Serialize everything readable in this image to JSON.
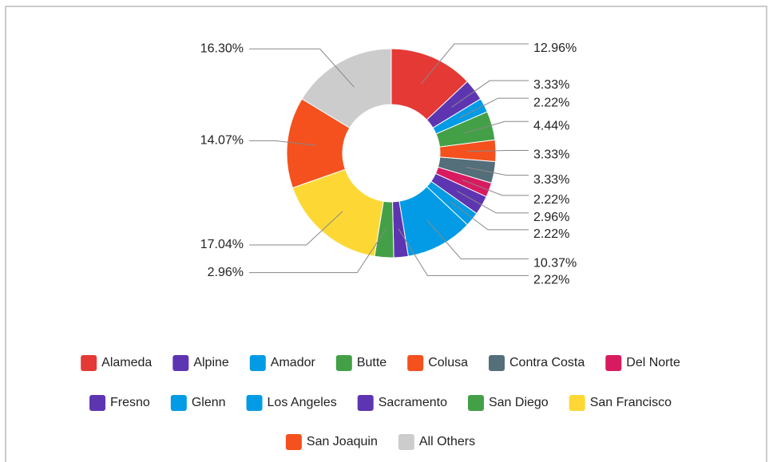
{
  "chart_data": {
    "type": "donut",
    "categories": [
      "Alameda",
      "Alpine",
      "Amador",
      "Butte",
      "Colusa",
      "Contra Costa",
      "Del Norte",
      "Fresno",
      "Glenn",
      "Los Angeles",
      "Sacramento",
      "San Diego",
      "San Francisco",
      "San Joaquin",
      "All Others"
    ],
    "values": [
      12.96,
      3.33,
      2.22,
      4.44,
      3.33,
      3.33,
      2.22,
      2.96,
      2.22,
      10.37,
      2.22,
      2.96,
      17.04,
      14.07,
      16.3
    ],
    "value_labels": [
      "12.96%",
      "3.33%",
      "2.22%",
      "4.44%",
      "3.33%",
      "3.33%",
      "2.22%",
      "2.96%",
      "2.22%",
      "10.37%",
      "2.22%",
      "2.96%",
      "17.04%",
      "14.07%",
      "16.30%"
    ],
    "colors": [
      "#e53935",
      "#5e35b1",
      "#039be5",
      "#43a047",
      "#f4511e",
      "#546e7a",
      "#d81b60",
      "#5e35b1",
      "#039be5",
      "#039be5",
      "#5e35b1",
      "#43a047",
      "#fdd835",
      "#f4511e",
      "#cccccc"
    ],
    "legend": "bottom"
  }
}
